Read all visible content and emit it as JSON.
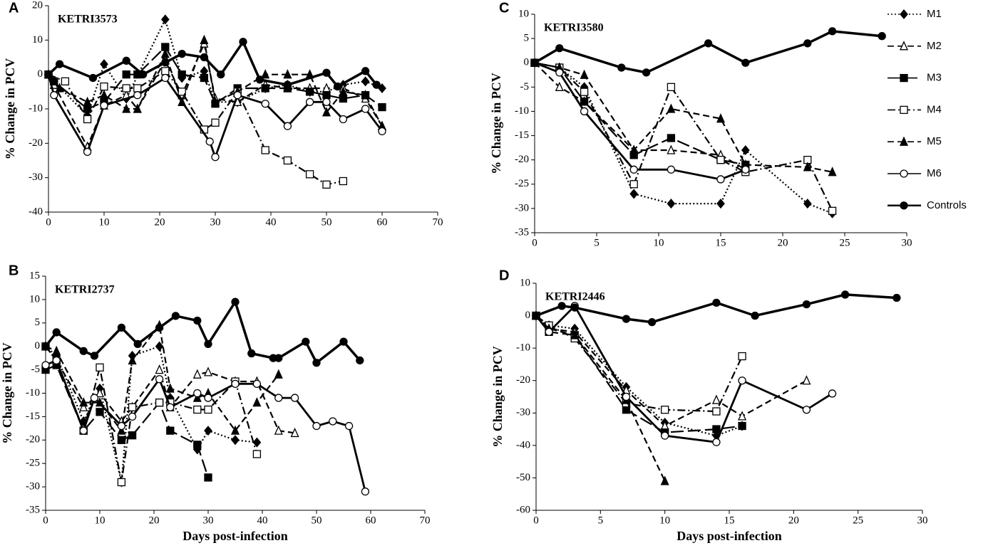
{
  "chart_data": [
    {
      "type": "line",
      "panel": "A",
      "title": "KETRI3573",
      "ylabel": "% Change in PCV",
      "xlim": [
        0,
        70
      ],
      "xticks": [
        0,
        10,
        20,
        30,
        40,
        50,
        60,
        70
      ],
      "ylim": [
        -40,
        20
      ],
      "yticks": [
        -40,
        -30,
        -20,
        -10,
        0,
        10,
        20
      ],
      "grid": false,
      "series": [
        {
          "name": "M1",
          "color": "#000000",
          "marker": "diamond",
          "dash": "dotted",
          "x": [
            0,
            1,
            7,
            10,
            14,
            21,
            24,
            28,
            30,
            34,
            39,
            43,
            47,
            50,
            53,
            57,
            60
          ],
          "values": [
            0,
            -2,
            -12,
            3,
            -7,
            16,
            -1,
            1,
            -8,
            -8,
            -4,
            -3,
            -5,
            -5,
            -3,
            -2,
            -4
          ]
        },
        {
          "name": "M2",
          "color": "#000000",
          "marker": "triangle-open",
          "dash": "dashed",
          "x": [
            0,
            1,
            7,
            10,
            14,
            16,
            21,
            24,
            28,
            30,
            34,
            39,
            43,
            47,
            50,
            53,
            57,
            60
          ],
          "values": [
            0,
            -3,
            -21,
            -9,
            -6,
            -10,
            4,
            -6,
            9,
            -7,
            -8,
            -3,
            -4,
            -4,
            -4,
            -4,
            -7,
            -15
          ]
        },
        {
          "name": "M3",
          "color": "#000000",
          "marker": "square",
          "dash": "long-dash",
          "x": [
            0,
            1,
            7,
            10,
            14,
            16,
            21,
            24,
            28,
            30,
            34,
            39,
            43,
            47,
            50,
            53,
            57,
            60
          ],
          "values": [
            0,
            -2,
            -10,
            -8,
            0,
            0,
            8,
            0,
            -1,
            -8.5,
            -4,
            -4,
            -4,
            -5,
            -6,
            -7,
            -6,
            -9.5
          ]
        },
        {
          "name": "M4",
          "color": "#000000",
          "marker": "square-open",
          "dash": "dash-dot",
          "x": [
            0,
            3,
            7,
            10,
            14,
            16,
            21,
            24,
            28,
            30,
            34,
            39,
            43,
            47,
            50,
            53
          ],
          "values": [
            0,
            -2,
            -13,
            -3.5,
            -4,
            -4,
            1,
            -5,
            -16,
            -14,
            -5,
            -22,
            -25,
            -29,
            -32,
            -31
          ]
        },
        {
          "name": "M5",
          "color": "#000000",
          "marker": "triangle",
          "dash": "dashed",
          "x": [
            0,
            2,
            7,
            10,
            14,
            16,
            21,
            24,
            28,
            30,
            34,
            39,
            43,
            47,
            50,
            53,
            57,
            60
          ],
          "values": [
            0,
            -4,
            -8,
            -6,
            -10,
            -10,
            6,
            -8,
            10,
            -8,
            -5,
            0,
            0,
            0,
            -11,
            -5,
            -6,
            -15
          ]
        },
        {
          "name": "M6",
          "color": "#000000",
          "marker": "circle-open",
          "dash": "solid",
          "x": [
            0,
            1,
            7,
            10,
            16,
            21,
            29,
            30,
            34,
            39,
            43,
            47,
            50,
            53,
            57,
            60
          ],
          "values": [
            0,
            -6,
            -22.5,
            -9,
            -6,
            -1,
            -19.5,
            -24,
            -6,
            -8.5,
            -15,
            -8,
            -8,
            -13,
            -10,
            -16.5
          ]
        },
        {
          "name": "Controls",
          "color": "#000000",
          "marker": "circle",
          "dash": "solid",
          "x": [
            0,
            2,
            8,
            14,
            17,
            21,
            24,
            28,
            31,
            35,
            38,
            43,
            50,
            52,
            57,
            59
          ],
          "values": [
            0,
            3,
            -1,
            4,
            0,
            3.5,
            6,
            5,
            0,
            9.5,
            -1.5,
            -3,
            0.5,
            -3.5,
            1,
            -3
          ]
        }
      ]
    },
    {
      "type": "line",
      "panel": "B",
      "title": "KETRI2737",
      "ylabel": "% Change in PCV",
      "xlabel": "Days post-infection",
      "xlim": [
        0,
        70
      ],
      "xticks": [
        0,
        10,
        20,
        30,
        40,
        50,
        60,
        70
      ],
      "ylim": [
        -35,
        15
      ],
      "yticks": [
        -35,
        -30,
        -25,
        -20,
        -15,
        -10,
        -5,
        0,
        5,
        10,
        15
      ],
      "grid": false,
      "series": [
        {
          "name": "M1",
          "color": "#000000",
          "marker": "diamond",
          "dash": "dotted",
          "x": [
            0,
            2,
            7,
            10,
            14,
            16,
            21,
            23,
            28,
            30,
            35,
            39
          ],
          "values": [
            0,
            -2,
            -16,
            -9,
            -29,
            -2,
            0,
            -11,
            -22,
            -18,
            -20,
            -20.5
          ]
        },
        {
          "name": "M2",
          "color": "#000000",
          "marker": "triangle-open",
          "dash": "dashed",
          "x": [
            0,
            2,
            7,
            10,
            14,
            16,
            21,
            23,
            28,
            30,
            35,
            39,
            43,
            46
          ],
          "values": [
            0,
            -3,
            -13,
            -10,
            -16,
            -13,
            -5,
            -13,
            -6,
            -5.5,
            -7.5,
            -7.5,
            -18,
            -18.5
          ]
        },
        {
          "name": "M3",
          "color": "#000000",
          "marker": "square",
          "dash": "long-dash",
          "x": [
            0,
            2,
            7,
            10,
            14,
            16,
            21,
            23,
            28,
            30
          ],
          "values": [
            -5,
            -4,
            -18,
            -14,
            -20,
            -19,
            -12,
            -18,
            -21,
            -28
          ]
        },
        {
          "name": "M4",
          "color": "#000000",
          "marker": "square-open",
          "dash": "dash-dot",
          "x": [
            0,
            2,
            7,
            10,
            14,
            16,
            21,
            23,
            28,
            30,
            35,
            39
          ],
          "values": [
            0,
            -3,
            -18,
            -4.5,
            -29,
            -13,
            -12,
            -12,
            -13.5,
            -13.5,
            -7.5,
            -23
          ]
        },
        {
          "name": "M5",
          "color": "#000000",
          "marker": "triangle",
          "dash": "dashed",
          "x": [
            0,
            2,
            7,
            10,
            14,
            16,
            21,
            23,
            28,
            30,
            35,
            39,
            43
          ],
          "values": [
            0,
            -1,
            -12,
            -12,
            -18,
            -3,
            4.5,
            -9,
            -11,
            -10,
            -18,
            -12,
            -6
          ]
        },
        {
          "name": "M6",
          "color": "#000000",
          "marker": "circle-open",
          "dash": "solid",
          "x": [
            0,
            2,
            7,
            9,
            14,
            16,
            21,
            23,
            28,
            30,
            35,
            39,
            43,
            46,
            50,
            53,
            56,
            59
          ],
          "values": [
            -4,
            -3,
            -18,
            -11,
            -17,
            -15,
            -7,
            -13,
            -10,
            -11,
            -8,
            -8,
            -11,
            -11,
            -17,
            -16,
            -17,
            -31
          ]
        },
        {
          "name": "Controls",
          "color": "#000000",
          "marker": "circle",
          "dash": "solid",
          "x": [
            0,
            2,
            7,
            9,
            14,
            17,
            21,
            24,
            28,
            30,
            35,
            38,
            42,
            43,
            48,
            50,
            55,
            58
          ],
          "values": [
            0,
            3,
            -1,
            -2,
            4,
            0.5,
            4,
            6.5,
            5.5,
            0.5,
            9.5,
            -1.5,
            -2.5,
            -2.5,
            1,
            -3.5,
            1,
            -3
          ]
        }
      ]
    },
    {
      "type": "line",
      "panel": "C",
      "title": "KETRI3580",
      "ylabel": "% Change in PCV",
      "legend": "right",
      "xlim": [
        0,
        30
      ],
      "xticks": [
        0,
        5,
        10,
        15,
        20,
        25,
        30
      ],
      "ylim": [
        -35,
        10
      ],
      "yticks": [
        -35,
        -30,
        -25,
        -20,
        -15,
        -10,
        -5,
        0,
        5,
        10
      ],
      "grid": false,
      "series": [
        {
          "name": "M1",
          "color": "#000000",
          "marker": "diamond",
          "dash": "dotted",
          "x": [
            0,
            2,
            4,
            8,
            11,
            15,
            17,
            22,
            24
          ],
          "values": [
            0,
            -1,
            -5,
            -27,
            -29,
            -29,
            -18,
            -29,
            -31
          ]
        },
        {
          "name": "M2",
          "color": "#000000",
          "marker": "triangle-open",
          "dash": "dashed",
          "x": [
            0,
            2,
            4,
            8,
            11,
            15,
            17
          ],
          "values": [
            0,
            -5,
            -8,
            -18,
            -18,
            -19,
            -22
          ]
        },
        {
          "name": "M3",
          "color": "#000000",
          "marker": "square",
          "dash": "long-dash",
          "x": [
            0,
            2,
            4,
            8,
            11,
            15,
            17
          ],
          "values": [
            0,
            -1,
            -8,
            -19,
            -15.5,
            -20,
            -21
          ]
        },
        {
          "name": "M4",
          "color": "#000000",
          "marker": "square-open",
          "dash": "dash-dot",
          "x": [
            0,
            2,
            4,
            8,
            11,
            15,
            17,
            22,
            24
          ],
          "values": [
            0,
            -1,
            -6,
            -25,
            -5,
            -20,
            -22.5,
            -20,
            -30.5
          ]
        },
        {
          "name": "M5",
          "color": "#000000",
          "marker": "triangle",
          "dash": "dashed",
          "x": [
            0,
            2,
            4,
            8,
            11,
            15,
            17,
            22,
            24
          ],
          "values": [
            0,
            -1,
            -2.5,
            -18,
            -9.5,
            -11.5,
            -21,
            -21.5,
            -22.5
          ]
        },
        {
          "name": "M6",
          "color": "#000000",
          "marker": "circle-open",
          "dash": "solid",
          "x": [
            0,
            2,
            4,
            8,
            11,
            15,
            17
          ],
          "values": [
            0,
            -2,
            -10,
            -22,
            -22,
            -24,
            -22
          ]
        },
        {
          "name": "Controls",
          "color": "#000000",
          "marker": "circle",
          "dash": "solid",
          "x": [
            0,
            2,
            7,
            9,
            14,
            17,
            22,
            24,
            28
          ],
          "values": [
            0,
            3,
            -1,
            -2,
            4,
            0,
            4,
            6.5,
            5.5
          ]
        }
      ]
    },
    {
      "type": "line",
      "panel": "D",
      "title": "KETRI2446",
      "ylabel": "% Change in PCV",
      "xlabel": "Days post-infection",
      "xlim": [
        0,
        30
      ],
      "xticks": [
        0,
        5,
        10,
        15,
        20,
        25,
        30
      ],
      "ylim": [
        -60,
        10
      ],
      "yticks": [
        -60,
        -50,
        -40,
        -30,
        -20,
        -10,
        0,
        10
      ],
      "grid": false,
      "series": [
        {
          "name": "M1",
          "color": "#000000",
          "marker": "diamond",
          "dash": "dotted",
          "x": [
            0,
            1,
            3,
            7,
            10,
            14,
            16
          ],
          "values": [
            0,
            -3,
            -4,
            -22,
            -33,
            -37,
            -34
          ]
        },
        {
          "name": "M2",
          "color": "#000000",
          "marker": "triangle-open",
          "dash": "dashed",
          "x": [
            0,
            1,
            3,
            7,
            10,
            14,
            16,
            21
          ],
          "values": [
            0,
            -4,
            -5,
            -23,
            -34,
            -26,
            -31,
            -20
          ]
        },
        {
          "name": "M3",
          "color": "#000000",
          "marker": "square",
          "dash": "long-dash",
          "x": [
            0,
            1,
            3,
            7,
            10,
            14,
            16
          ],
          "values": [
            0,
            -5,
            -6,
            -29,
            -36,
            -35,
            -34
          ]
        },
        {
          "name": "M4",
          "color": "#000000",
          "marker": "square-open",
          "dash": "dash-dot",
          "x": [
            0,
            1,
            3,
            7,
            10,
            14,
            16
          ],
          "values": [
            0,
            -3,
            -7,
            -27,
            -29,
            -29.5,
            -12.5
          ]
        },
        {
          "name": "M5",
          "color": "#000000",
          "marker": "triangle",
          "dash": "dashed",
          "x": [
            0,
            1,
            3,
            7,
            10
          ],
          "values": [
            0,
            -4,
            -6,
            -26,
            -51
          ]
        },
        {
          "name": "M6",
          "color": "#000000",
          "marker": "circle-open",
          "dash": "solid",
          "x": [
            0,
            1,
            3,
            7,
            10,
            14,
            16,
            21,
            23
          ],
          "values": [
            0,
            -5,
            3,
            -25,
            -37,
            -39,
            -20,
            -29,
            -24
          ]
        },
        {
          "name": "Controls",
          "color": "#000000",
          "marker": "circle",
          "dash": "solid",
          "x": [
            0,
            2,
            3,
            7,
            9,
            14,
            17,
            21,
            24,
            28
          ],
          "values": [
            0,
            3,
            2.5,
            -1,
            -2,
            4,
            0,
            3.5,
            6.5,
            5.5
          ]
        }
      ]
    }
  ]
}
